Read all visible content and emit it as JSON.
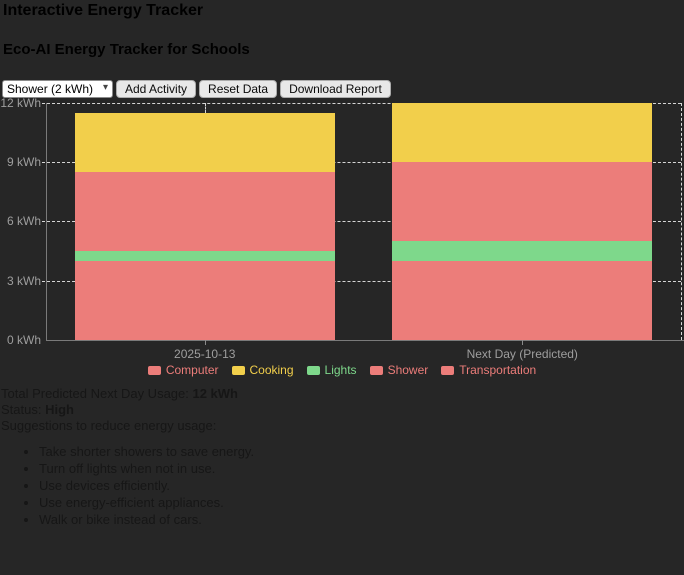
{
  "page": {
    "title": "Interactive Energy Tracker",
    "subtitle": "Eco-AI Energy Tracker for Schools"
  },
  "controls": {
    "activity_select_value": "Shower (2 kWh)",
    "add_activity_label": "Add Activity",
    "reset_data_label": "Reset Data",
    "download_report_label": "Download Report"
  },
  "chart_data": {
    "type": "bar",
    "stacked": true,
    "categories": [
      "2025-10-13",
      "Next Day (Predicted)"
    ],
    "series": [
      {
        "name": "Computer",
        "color": "#ec7d7a",
        "values": [
          4,
          4
        ]
      },
      {
        "name": "Lights",
        "color": "#7ed88b",
        "values": [
          0.5,
          1
        ]
      },
      {
        "name": "Shower",
        "color": "#ec7d7a",
        "values": [
          2,
          2
        ]
      },
      {
        "name": "Transportation",
        "color": "#ec7d7a",
        "values": [
          2,
          2
        ]
      },
      {
        "name": "Cooking",
        "color": "#f2cf4b",
        "values": [
          3,
          3
        ]
      }
    ],
    "totals": [
      11.5,
      12
    ],
    "legend": [
      {
        "label": "Computer",
        "color": "#ec7d7a"
      },
      {
        "label": "Cooking",
        "color": "#f2cf4b"
      },
      {
        "label": "Lights",
        "color": "#7ed88b"
      },
      {
        "label": "Shower",
        "color": "#ec7d7a"
      },
      {
        "label": "Transportation",
        "color": "#ec7d7a"
      }
    ],
    "yticks": [
      "0 kWh",
      "3 kWh",
      "6 kWh",
      "9 kWh",
      "12 kWh"
    ],
    "ylim": [
      0,
      12
    ],
    "legend_position": "bottom",
    "grid": "dashed"
  },
  "summary": {
    "total_label": "Total Predicted Next Day Usage: ",
    "total_value": "12 kWh",
    "status_label": "Status: ",
    "status_value": "High",
    "suggestions_heading": "Suggestions to reduce energy usage:",
    "suggestions": [
      "Take shorter showers to save energy.",
      "Turn off lights when not in use.",
      "Use devices efficiently.",
      "Use energy-efficient appliances.",
      "Walk or bike instead of cars."
    ]
  },
  "colors": {
    "background": "#262626",
    "salmon": "#ec7d7a",
    "yellow": "#f2cf4b",
    "green": "#7ed88b",
    "axis": "#7a7a7a",
    "grid_dash": "#d6d6d6",
    "tick_text": "#9e9e9e"
  }
}
